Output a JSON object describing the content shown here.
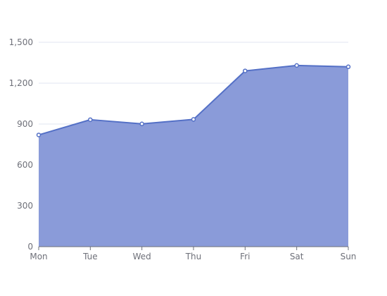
{
  "chart_data": {
    "type": "area",
    "categories": [
      "Mon",
      "Tue",
      "Wed",
      "Thu",
      "Fri",
      "Sat",
      "Sun"
    ],
    "values": [
      820,
      932,
      901,
      934,
      1290,
      1330,
      1320
    ],
    "ylim": [
      0,
      1500
    ],
    "yticks": [
      0,
      300,
      600,
      900,
      1200,
      1500
    ],
    "ytick_labels": [
      "0",
      "300",
      "600",
      "900",
      "1,200",
      "1,500"
    ],
    "grid": true,
    "legend": "none",
    "colors": {
      "line": "#5470c6",
      "area": "#8a9bd9",
      "grid": "#e0e6f1",
      "axis": "#6e7079",
      "marker_fill": "#ffffff"
    }
  }
}
